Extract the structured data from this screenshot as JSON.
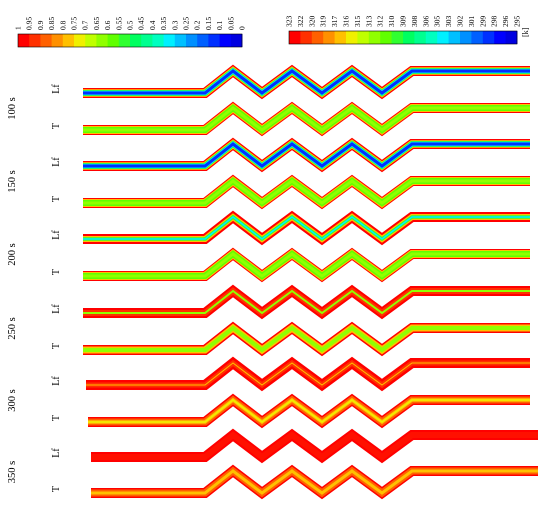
{
  "legend_fraction": {
    "ticks": [
      "1",
      "0.95",
      "0.9",
      "0.85",
      "0.8",
      "0.75",
      "0.7",
      "0.65",
      "0.6",
      "0.55",
      "0.5",
      "0.45",
      "0.4",
      "0.35",
      "0.3",
      "0.25",
      "0.2",
      "0.15",
      "0.1",
      "0.05",
      "0"
    ],
    "colors": [
      "#ff0000",
      "#ff3000",
      "#ff6000",
      "#ff9000",
      "#ffc000",
      "#f0f000",
      "#c0ff00",
      "#90ff00",
      "#60ff00",
      "#30ff30",
      "#00ff60",
      "#00ff90",
      "#00ffc0",
      "#00f0ff",
      "#00c0ff",
      "#0090ff",
      "#0060ff",
      "#0030ff",
      "#0000ff",
      "#0000e0"
    ]
  },
  "legend_temperature": {
    "ticks": [
      "323",
      "322",
      "320",
      "319",
      "317",
      "316",
      "315",
      "313",
      "312",
      "310",
      "309",
      "308",
      "306",
      "305",
      "303",
      "302",
      "301",
      "299",
      "298",
      "296",
      "295"
    ],
    "unit": "[k]",
    "colors": [
      "#ff0000",
      "#ff3000",
      "#ff6000",
      "#ff9000",
      "#ffc000",
      "#f0f000",
      "#c0ff00",
      "#90ff00",
      "#60ff00",
      "#30ff30",
      "#00ff60",
      "#00ff90",
      "#00ffc0",
      "#00f0ff",
      "#00c0ff",
      "#0090ff",
      "#0060ff",
      "#0030ff",
      "#0000ff",
      "#0000e0"
    ]
  },
  "groups": [
    {
      "time": "100 s"
    },
    {
      "time": "150 s"
    },
    {
      "time": "200 s"
    },
    {
      "time": "250 s"
    },
    {
      "time": "300 s"
    },
    {
      "time": "350 s"
    }
  ],
  "rows": [
    {
      "label": "Lf",
      "group": 0,
      "style": "blue"
    },
    {
      "label": "T",
      "group": 0,
      "style": "green"
    },
    {
      "label": "Lf",
      "group": 1,
      "style": "blue"
    },
    {
      "label": "T",
      "group": 1,
      "style": "green"
    },
    {
      "label": "Lf",
      "group": 2,
      "style": "mix"
    },
    {
      "label": "T",
      "group": 2,
      "style": "green"
    },
    {
      "label": "Lf",
      "group": 3,
      "style": "redthin"
    },
    {
      "label": "T",
      "group": 3,
      "style": "greenred"
    },
    {
      "label": "Lf",
      "group": 4,
      "style": "redline"
    },
    {
      "label": "T",
      "group": 4,
      "style": "yellowred"
    },
    {
      "label": "Lf",
      "group": 5,
      "style": "red"
    },
    {
      "label": "T",
      "group": 5,
      "style": "orange"
    }
  ]
}
